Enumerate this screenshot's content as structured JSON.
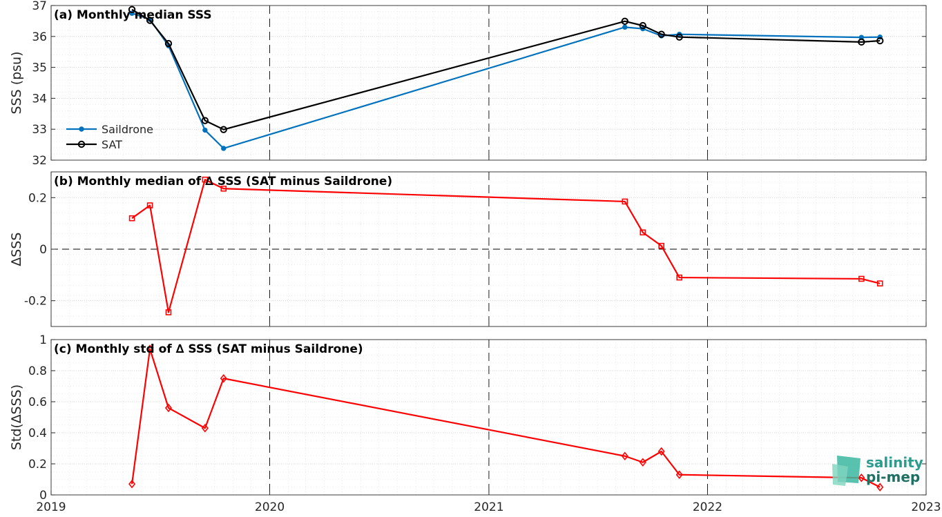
{
  "logo": {
    "line1": "salinity",
    "line2": "pi-mep",
    "color": "#2a9d8f"
  },
  "colors": {
    "saildrone": "#0072bd",
    "sat": "#000000",
    "delta": "#ff0000",
    "grid": "#cccccc",
    "zero_line": "#000000"
  },
  "chart_data": [
    {
      "type": "line",
      "title": "(a) Monthly median SSS",
      "ylabel": "SSS (psu)",
      "xlim": [
        "2019-01-01",
        "2023-01-01"
      ],
      "ylim": [
        32,
        37
      ],
      "yticks": [
        32,
        33,
        34,
        35,
        36,
        37
      ],
      "ytick_labels": [
        "32",
        "33",
        "34",
        "35",
        "36",
        "37"
      ],
      "grid": true,
      "legend_position": "lower-left",
      "series": [
        {
          "name": "Saildrone",
          "marker": "dot",
          "color": "#0072bd",
          "x": [
            "2019-05-16",
            "2019-06-15",
            "2019-07-16",
            "2019-09-15",
            "2019-10-16",
            "2021-08-16",
            "2021-09-15",
            "2021-10-16",
            "2021-11-15",
            "2022-09-15",
            "2022-10-16"
          ],
          "y": [
            36.75,
            36.55,
            35.7,
            32.97,
            32.38,
            36.3,
            36.25,
            36.02,
            36.07,
            35.97,
            35.98
          ]
        },
        {
          "name": "SAT",
          "marker": "circle",
          "color": "#000000",
          "x": [
            "2019-05-16",
            "2019-06-15",
            "2019-07-16",
            "2019-09-15",
            "2019-10-16",
            "2021-08-16",
            "2021-09-15",
            "2021-10-16",
            "2021-11-15",
            "2022-09-15",
            "2022-10-16"
          ],
          "y": [
            36.87,
            36.52,
            35.77,
            33.28,
            32.99,
            36.49,
            36.35,
            36.07,
            35.98,
            35.82,
            35.86
          ]
        }
      ]
    },
    {
      "type": "line",
      "title": "(b) Monthly median of ∆ SSS (SAT minus Saildrone)",
      "ylabel": "∆SSS",
      "xlim": [
        "2019-01-01",
        "2023-01-01"
      ],
      "ylim": [
        -0.3,
        0.3
      ],
      "yticks": [
        -0.2,
        0,
        0.2
      ],
      "ytick_labels": [
        "-0.2",
        "0",
        "0.2"
      ],
      "zero_line": true,
      "grid": true,
      "series": [
        {
          "marker": "square",
          "color": "#ff0000",
          "x": [
            "2019-05-16",
            "2019-06-15",
            "2019-07-16",
            "2019-09-15",
            "2019-10-16",
            "2021-08-16",
            "2021-09-15",
            "2021-10-16",
            "2021-11-15",
            "2022-09-15",
            "2022-10-16"
          ],
          "y": [
            0.12,
            0.17,
            -0.245,
            0.27,
            0.235,
            0.185,
            0.065,
            0.013,
            -0.11,
            -0.115,
            -0.133
          ]
        }
      ]
    },
    {
      "type": "line",
      "title": "(c) Monthly std of ∆ SSS (SAT minus Saildrone)",
      "ylabel": "Std(∆SSS)",
      "xlim": [
        "2019-01-01",
        "2023-01-01"
      ],
      "ylim": [
        0,
        1
      ],
      "yticks": [
        0,
        0.2,
        0.4,
        0.6,
        0.8,
        1
      ],
      "ytick_labels": [
        "0",
        "0.2",
        "0.4",
        "0.6",
        "0.8",
        "1"
      ],
      "xticks": [
        "2019-01-01",
        "2020-01-01",
        "2021-01-01",
        "2022-01-01",
        "2023-01-01"
      ],
      "xtick_labels": [
        "2019",
        "2020",
        "2021",
        "2022",
        "2023"
      ],
      "grid": true,
      "series": [
        {
          "marker": "diamond",
          "color": "#ff0000",
          "x": [
            "2019-05-16",
            "2019-06-15",
            "2019-07-16",
            "2019-09-15",
            "2019-10-16",
            "2021-08-16",
            "2021-09-15",
            "2021-10-16",
            "2021-11-15",
            "2022-09-15",
            "2022-10-16"
          ],
          "y": [
            0.07,
            0.94,
            0.56,
            0.43,
            0.75,
            0.25,
            0.21,
            0.28,
            0.13,
            0.11,
            0.05
          ]
        }
      ]
    }
  ]
}
